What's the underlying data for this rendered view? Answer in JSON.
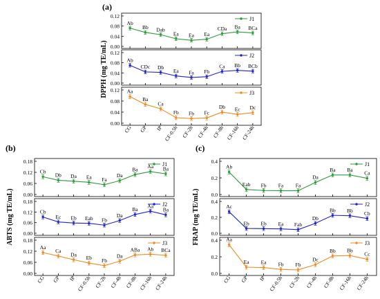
{
  "colors": {
    "J1": "#2e9a3a",
    "J2": "#1f23c9",
    "J3": "#f08a22",
    "frame": "#000000",
    "grid": "#cfcfcf"
  },
  "chart_data": [
    {
      "id": "a",
      "panel_label": "(a)",
      "type": "line",
      "ylabel": "DPPH (mg TE/mL)",
      "categories": [
        "CG",
        "GP",
        "IP",
        "CF-0.5h",
        "CF-2h",
        "CF-4h",
        "CF-8h",
        "CF-16h",
        "CF-24h"
      ],
      "series": [
        {
          "name": "J1",
          "ylim": [
            0,
            0.12
          ],
          "ticks": [
            "0.00",
            "0.04",
            "0.08",
            "0.12"
          ],
          "values": [
            0.072,
            0.055,
            0.046,
            0.03,
            0.024,
            0.028,
            0.05,
            0.057,
            0.053
          ],
          "labels": [
            "Ab",
            "Bb",
            "Dab",
            "Ea",
            "Ea",
            "Ea",
            "CDa",
            "Ba",
            "BCa"
          ]
        },
        {
          "name": "J2",
          "ylim": [
            0,
            0.12
          ],
          "ticks": [
            "0.00",
            "0.04",
            "0.08",
            "0.12"
          ],
          "values": [
            0.07,
            0.044,
            0.042,
            0.028,
            0.022,
            0.025,
            0.046,
            0.05,
            0.047
          ],
          "labels": [
            "Ab",
            "CDc",
            "Db",
            "Ea",
            "Fa",
            "Fb",
            "Ca",
            "Bb",
            "BCb"
          ]
        },
        {
          "name": "J3",
          "ylim": [
            0,
            0.12
          ],
          "ticks": [
            "0.00",
            "0.04",
            "0.08",
            "0.12"
          ],
          "values": [
            0.096,
            0.068,
            0.052,
            0.02,
            0.017,
            0.019,
            0.04,
            0.032,
            0.038
          ],
          "labels": [
            "Aa",
            "Ba",
            "Ca",
            "Fb",
            "Fb",
            "Fc",
            "Db",
            "Ec",
            "Dc"
          ]
        }
      ]
    },
    {
      "id": "b",
      "panel_label": "(b)",
      "type": "line",
      "ylabel": "ABTS (mg TE/mL)",
      "categories": [
        "CG",
        "GP",
        "IP",
        "CF-0.5h",
        "CF-2h",
        "CF-4h",
        "CF-8h",
        "CF-16h",
        "CF-24h"
      ],
      "series": [
        {
          "name": "J1",
          "ylim": [
            0,
            0.18
          ],
          "ticks": [
            "0.00",
            "0.06",
            "0.12",
            "0.18"
          ],
          "values": [
            0.096,
            0.077,
            0.072,
            0.066,
            0.053,
            0.075,
            0.108,
            0.124,
            0.112
          ],
          "labels": [
            "Cb",
            "Db",
            "Da",
            "Ea",
            "Fa",
            "Da",
            "Ba",
            "Aa",
            "Ba"
          ]
        },
        {
          "name": "J2",
          "ylim": [
            0,
            0.18
          ],
          "ticks": [
            "0.00",
            "0.06",
            "0.12",
            "0.18"
          ],
          "values": [
            0.092,
            0.064,
            0.058,
            0.056,
            0.046,
            0.072,
            0.106,
            0.125,
            0.104
          ],
          "labels": [
            "Cb",
            "Ec",
            "Eb",
            "Eab",
            "Fb",
            "Da",
            "Ba",
            "Aa",
            "Ba"
          ]
        },
        {
          "name": "J3",
          "ylim": [
            0,
            0.18
          ],
          "ticks": [
            "0.00",
            "0.06",
            "0.12",
            "0.18"
          ],
          "values": [
            0.113,
            0.094,
            0.074,
            0.056,
            0.042,
            0.066,
            0.1,
            0.104,
            0.098
          ],
          "labels": [
            "Aa",
            "Ca",
            "Da",
            "Eb",
            "Fb",
            "Da",
            "ABa",
            "Ab",
            "BCa"
          ]
        }
      ]
    },
    {
      "id": "c",
      "panel_label": "(c)",
      "type": "line",
      "ylabel": "FRAP (mg TE/mL)",
      "categories": [
        "CG",
        "GP",
        "IP",
        "CF-0.5h",
        "CF-2h",
        "CF-4h",
        "CF-8h",
        "CF-16h",
        "CF-24h"
      ],
      "series": [
        {
          "name": "J1",
          "ylim": [
            0,
            0.4
          ],
          "ticks": [
            "0.0",
            "0.2",
            "0.4"
          ],
          "values": [
            0.27,
            0.06,
            0.048,
            0.045,
            0.045,
            0.145,
            0.235,
            0.235,
            0.195
          ],
          "labels": [
            "Ab",
            "Eab",
            "Fb",
            "Fa",
            "Fa",
            "Da",
            "Ba",
            "Ba",
            "Ca"
          ]
        },
        {
          "name": "J2",
          "ylim": [
            0,
            0.4
          ],
          "ticks": [
            "0.0",
            "0.2",
            "0.4"
          ],
          "values": [
            0.27,
            0.06,
            0.058,
            0.055,
            0.045,
            0.125,
            0.225,
            0.22,
            0.185
          ],
          "labels": [
            "Ac",
            "Eb",
            "Eb",
            "Ea",
            "Fab",
            "Db",
            "Bb",
            "Bb",
            "Cb"
          ]
        },
        {
          "name": "J3",
          "ylim": [
            0,
            0.4
          ],
          "ticks": [
            "0.0",
            "0.2",
            "0.4"
          ],
          "values": [
            0.345,
            0.075,
            0.07,
            0.048,
            0.042,
            0.105,
            0.21,
            0.215,
            0.17
          ],
          "labels": [
            "Aa",
            "Ea",
            "Ea",
            "Fb",
            "Fb",
            "Dc",
            "Bb",
            "Bb",
            "Cc"
          ]
        }
      ]
    }
  ]
}
